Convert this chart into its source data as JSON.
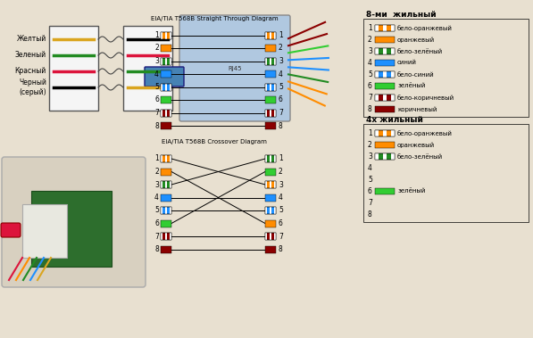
{
  "bg_color": "#e8e0d0",
  "title": "",
  "straight_title": "EIA/TIA T568B Straight Through Diagram",
  "crossover_title": "EIA/TIA T568B Crossover Diagram",
  "legend8_title": "8-ми  жильный",
  "legend4_title": "4х жильный",
  "wire_colors": [
    {
      "id": 1,
      "main": "#FF8C00",
      "stripe": "#FFFFFF",
      "name": "бело-оранжевый"
    },
    {
      "id": 2,
      "main": "#FF8C00",
      "stripe": null,
      "name": "оранжевый"
    },
    {
      "id": 3,
      "main": "#228B22",
      "stripe": "#FFFFFF",
      "name": "бело-зелёный"
    },
    {
      "id": 4,
      "main": "#1E90FF",
      "stripe": null,
      "name": "синий"
    },
    {
      "id": 5,
      "main": "#1E90FF",
      "stripe": "#FFFFFF",
      "name": "бело-синий"
    },
    {
      "id": 6,
      "main": "#32CD32",
      "stripe": null,
      "name": "зелёный"
    },
    {
      "id": 7,
      "main": "#8B0000",
      "stripe": "#FFFFFF",
      "name": "бело-коричневый"
    },
    {
      "id": 8,
      "main": "#8B0000",
      "stripe": null,
      "name": "коричневый"
    }
  ],
  "crossover_map": [
    1,
    2,
    3,
    4,
    5,
    6,
    7,
    8
  ],
  "crossover_right": [
    3,
    6,
    1,
    4,
    5,
    2,
    7,
    8
  ],
  "legend4_entries": [
    {
      "id": 1,
      "name": "бело-оранжевый",
      "main": "#FF8C00",
      "stripe": "#FFFFFF"
    },
    {
      "id": 2,
      "name": "оранжевый",
      "main": "#FF8C00",
      "stripe": null
    },
    {
      "id": 3,
      "name": "бело-зелёный",
      "main": "#228B22",
      "stripe": "#FFFFFF"
    },
    {
      "id": 4,
      "name": "",
      "main": null,
      "stripe": null
    },
    {
      "id": 5,
      "name": "",
      "main": null,
      "stripe": null
    },
    {
      "id": 6,
      "name": "зелёный",
      "main": "#32CD32",
      "stripe": null
    },
    {
      "id": 7,
      "name": "",
      "main": null,
      "stripe": null
    },
    {
      "id": 8,
      "name": "",
      "main": null,
      "stripe": null
    }
  ],
  "top_labels_left": [
    "Желтый",
    "Зеленый",
    "Красный",
    "Черный\n(серый)"
  ],
  "top_wire_colors": [
    "#DAA520",
    "#228B22",
    "#DC143C",
    "#000000"
  ]
}
